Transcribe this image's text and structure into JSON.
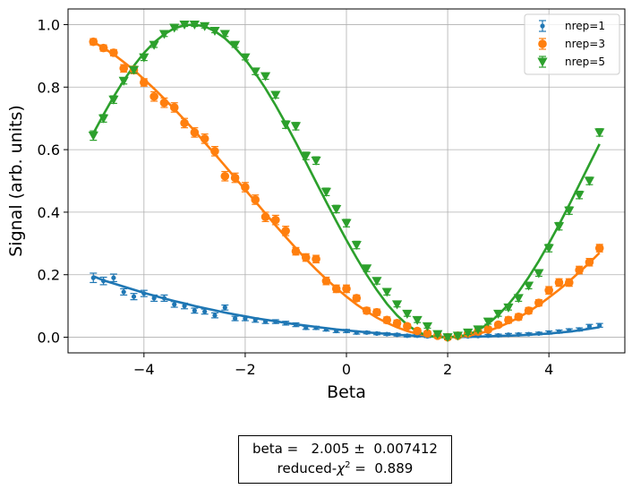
{
  "chart_data": {
    "type": "scatter",
    "xlabel": "Beta",
    "ylabel": "Signal (arb. units)",
    "xlim": [
      -5.5,
      5.5
    ],
    "ylim": [
      -0.05,
      1.05
    ],
    "xticks": [
      -4,
      -2,
      0,
      2,
      4
    ],
    "yticks": [
      0.0,
      0.2,
      0.4,
      0.6,
      0.8,
      1.0
    ],
    "xtick_labels": [
      "−4",
      "−2",
      "0",
      "2",
      "4"
    ],
    "ytick_labels": [
      "0.0",
      "0.2",
      "0.4",
      "0.6",
      "0.8",
      "1.0"
    ],
    "grid": true,
    "legend_position": "top-right",
    "x": [
      -5.0,
      -4.8,
      -4.6,
      -4.4,
      -4.2,
      -4.0,
      -3.8,
      -3.6,
      -3.4,
      -3.2,
      -3.0,
      -2.8,
      -2.6,
      -2.4,
      -2.2,
      -2.0,
      -1.8,
      -1.6,
      -1.4,
      -1.2,
      -1.0,
      -0.8,
      -0.6,
      -0.4,
      -0.2,
      0.0,
      0.2,
      0.4,
      0.6,
      0.8,
      1.0,
      1.2,
      1.4,
      1.6,
      1.8,
      2.0,
      2.2,
      2.4,
      2.6,
      2.8,
      3.0,
      3.2,
      3.4,
      3.6,
      3.8,
      4.0,
      4.2,
      4.4,
      4.6,
      4.8,
      5.0
    ],
    "series": [
      {
        "name": "nrep=1",
        "marker": "dot",
        "color": "#1f77b4",
        "values": [
          0.19,
          0.18,
          0.19,
          0.145,
          0.13,
          0.14,
          0.125,
          0.125,
          0.105,
          0.1,
          0.085,
          0.082,
          0.07,
          0.095,
          0.06,
          0.06,
          0.055,
          0.05,
          0.05,
          0.045,
          0.04,
          0.03,
          0.03,
          0.025,
          0.02,
          0.02,
          0.015,
          0.015,
          0.012,
          0.01,
          0.008,
          0.005,
          0.005,
          0.003,
          0.002,
          0.0,
          0.002,
          0.003,
          0.004,
          0.005,
          0.006,
          0.008,
          0.009,
          0.01,
          0.012,
          0.015,
          0.018,
          0.022,
          0.025,
          0.035,
          0.038
        ],
        "errors": [
          0.015,
          0.012,
          0.012,
          0.01,
          0.01,
          0.01,
          0.01,
          0.01,
          0.009,
          0.009,
          0.008,
          0.008,
          0.008,
          0.008,
          0.007,
          0.007,
          0.007,
          0.006,
          0.006,
          0.006,
          0.006,
          0.005,
          0.005,
          0.005,
          0.005,
          0.005,
          0.005,
          0.004,
          0.004,
          0.004,
          0.004,
          0.004,
          0.004,
          0.004,
          0.004,
          0.004,
          0.004,
          0.004,
          0.004,
          0.004,
          0.004,
          0.004,
          0.004,
          0.004,
          0.004,
          0.005,
          0.005,
          0.005,
          0.005,
          0.006,
          0.006
        ],
        "fit": [
          0.195,
          0.182,
          0.172,
          0.162,
          0.152,
          0.142,
          0.133,
          0.124,
          0.116,
          0.108,
          0.1,
          0.093,
          0.086,
          0.079,
          0.073,
          0.067,
          0.061,
          0.056,
          0.051,
          0.046,
          0.041,
          0.037,
          0.033,
          0.029,
          0.025,
          0.022,
          0.019,
          0.016,
          0.013,
          0.011,
          0.008,
          0.006,
          0.005,
          0.003,
          0.002,
          0.001,
          0.001,
          0.001,
          0.002,
          0.003,
          0.004,
          0.005,
          0.006,
          0.008,
          0.01,
          0.012,
          0.015,
          0.018,
          0.022,
          0.027,
          0.032
        ]
      },
      {
        "name": "nrep=3",
        "marker": "circle",
        "color": "#ff7f0e",
        "values": [
          0.945,
          0.925,
          0.91,
          0.86,
          0.855,
          0.815,
          0.77,
          0.75,
          0.735,
          0.685,
          0.655,
          0.635,
          0.595,
          0.515,
          0.51,
          0.48,
          0.44,
          0.385,
          0.375,
          0.34,
          0.275,
          0.255,
          0.25,
          0.18,
          0.155,
          0.155,
          0.125,
          0.085,
          0.08,
          0.055,
          0.045,
          0.035,
          0.02,
          0.012,
          0.005,
          0.0,
          0.005,
          0.012,
          0.018,
          0.025,
          0.04,
          0.055,
          0.065,
          0.085,
          0.11,
          0.15,
          0.175,
          0.175,
          0.215,
          0.24,
          0.285
        ],
        "errors": [
          0.01,
          0.01,
          0.01,
          0.012,
          0.012,
          0.012,
          0.015,
          0.015,
          0.015,
          0.015,
          0.015,
          0.015,
          0.015,
          0.015,
          0.015,
          0.015,
          0.015,
          0.015,
          0.015,
          0.015,
          0.012,
          0.012,
          0.012,
          0.012,
          0.012,
          0.012,
          0.01,
          0.01,
          0.01,
          0.01,
          0.01,
          0.008,
          0.008,
          0.008,
          0.008,
          0.008,
          0.008,
          0.008,
          0.008,
          0.008,
          0.008,
          0.01,
          0.01,
          0.01,
          0.01,
          0.012,
          0.012,
          0.012,
          0.012,
          0.012,
          0.012
        ],
        "fit": [
          0.945,
          0.925,
          0.905,
          0.88,
          0.855,
          0.825,
          0.795,
          0.763,
          0.73,
          0.695,
          0.66,
          0.623,
          0.586,
          0.548,
          0.51,
          0.472,
          0.434,
          0.396,
          0.358,
          0.321,
          0.285,
          0.25,
          0.217,
          0.186,
          0.157,
          0.13,
          0.105,
          0.083,
          0.063,
          0.046,
          0.032,
          0.02,
          0.011,
          0.005,
          0.001,
          0.0,
          0.001,
          0.005,
          0.011,
          0.02,
          0.032,
          0.046,
          0.063,
          0.082,
          0.103,
          0.127,
          0.152,
          0.179,
          0.208,
          0.238,
          0.27
        ]
      },
      {
        "name": "nrep=5",
        "marker": "triangle-down",
        "color": "#2ca02c",
        "values": [
          0.645,
          0.7,
          0.76,
          0.82,
          0.855,
          0.895,
          0.935,
          0.97,
          0.99,
          1.0,
          1.0,
          0.995,
          0.98,
          0.97,
          0.935,
          0.895,
          0.85,
          0.835,
          0.775,
          0.68,
          0.675,
          0.58,
          0.565,
          0.465,
          0.41,
          0.365,
          0.295,
          0.22,
          0.18,
          0.145,
          0.105,
          0.075,
          0.055,
          0.035,
          0.01,
          0.0,
          0.005,
          0.015,
          0.025,
          0.05,
          0.075,
          0.095,
          0.125,
          0.165,
          0.205,
          0.285,
          0.355,
          0.405,
          0.455,
          0.5,
          0.655
        ],
        "errors": [
          0.015,
          0.012,
          0.012,
          0.01,
          0.01,
          0.01,
          0.008,
          0.008,
          0.006,
          0.006,
          0.006,
          0.006,
          0.006,
          0.008,
          0.008,
          0.008,
          0.01,
          0.01,
          0.01,
          0.012,
          0.012,
          0.012,
          0.012,
          0.012,
          0.012,
          0.012,
          0.012,
          0.01,
          0.01,
          0.01,
          0.008,
          0.008,
          0.008,
          0.006,
          0.006,
          0.006,
          0.006,
          0.006,
          0.006,
          0.008,
          0.008,
          0.008,
          0.01,
          0.01,
          0.01,
          0.012,
          0.012,
          0.012,
          0.012,
          0.012,
          0.012
        ],
        "fit": [
          0.652,
          0.712,
          0.769,
          0.821,
          0.868,
          0.909,
          0.943,
          0.969,
          0.988,
          0.998,
          1.0,
          0.994,
          0.979,
          0.956,
          0.926,
          0.889,
          0.845,
          0.796,
          0.742,
          0.684,
          0.623,
          0.56,
          0.496,
          0.433,
          0.371,
          0.311,
          0.254,
          0.2,
          0.151,
          0.107,
          0.07,
          0.04,
          0.018,
          0.005,
          0.0,
          0.0,
          0.002,
          0.008,
          0.022,
          0.043,
          0.071,
          0.105,
          0.145,
          0.192,
          0.244,
          0.3,
          0.36,
          0.423,
          0.488,
          0.553,
          0.618
        ]
      }
    ]
  },
  "fit_results": {
    "beta_label": "beta =",
    "beta_value": "2.005",
    "pm": "±",
    "beta_error": "0.007412",
    "chi_label_prefix": "reduced-",
    "chi_symbol": "χ",
    "chi_exponent": "2",
    "chi_eq": "=",
    "chi_value": "0.889"
  }
}
